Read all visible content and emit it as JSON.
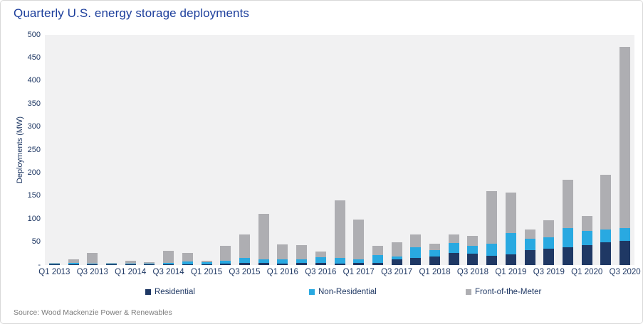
{
  "title": "Quarterly U.S. energy storage deployments",
  "source": "Source: Wood Mackenzie Power & Renewables",
  "colors": {
    "title_blue": "#1d3f9c",
    "axis_text": "#1f3864",
    "residential_navy": "#1f3864",
    "non_residential_blue": "#29a9e1",
    "front_of_meter_gray": "#aeaeb2",
    "plot_background": "#f1f1f2",
    "source_gray": "#7b7b7b"
  },
  "chart_data": {
    "type": "bar",
    "stacked": true,
    "title": "Quarterly U.S. energy storage deployments",
    "xlabel": "",
    "ylabel": "Deployments (MW)",
    "ylim": [
      0,
      500
    ],
    "ytick_step": 50,
    "ytick_labels_top_down": [
      "500",
      "450",
      "400",
      "350",
      "300",
      "250",
      "200",
      "150",
      "100",
      "50",
      "-"
    ],
    "grid": false,
    "plot_bg": "#f1f1f2",
    "legend_position": "bottom",
    "categories": [
      "Q1 2013",
      "Q2 2013",
      "Q3 2013",
      "Q4 2013",
      "Q1 2014",
      "Q2 2014",
      "Q3 2014",
      "Q4 2014",
      "Q1 2015",
      "Q2 2015",
      "Q3 2015",
      "Q4 2015",
      "Q1 2016",
      "Q2 2016",
      "Q3 2016",
      "Q4 2016",
      "Q1 2017",
      "Q2 2017",
      "Q3 2017",
      "Q4 2017",
      "Q1 2018",
      "Q2 2018",
      "Q3 2018",
      "Q4 2018",
      "Q1 2019",
      "Q2 2019",
      "Q3 2019",
      "Q4 2019",
      "Q1 2020",
      "Q2 2020",
      "Q3 2020"
    ],
    "xtick_labels": [
      "Q1 2013",
      "Q3 2013",
      "Q1 2014",
      "Q3 2014",
      "Q1 2015",
      "Q3 2015",
      "Q1 2016",
      "Q3 2016",
      "Q1 2017",
      "Q3 2017",
      "Q1 2018",
      "Q3 2018",
      "Q1 2019",
      "Q3 2019",
      "Q1 2020",
      "Q3 2020"
    ],
    "xtick_every": 2,
    "series": [
      {
        "name": "Residential",
        "color": "#1f3864",
        "values": [
          1,
          1,
          1,
          1,
          1,
          1,
          1,
          2,
          2,
          3,
          4,
          4,
          3,
          4,
          5,
          3,
          4,
          5,
          12,
          16,
          19,
          26,
          24,
          20,
          23,
          33,
          36,
          39,
          44,
          49,
          52
        ]
      },
      {
        "name": "Non-Residential",
        "color": "#29a9e1",
        "values": [
          2,
          3,
          2,
          2,
          2,
          2,
          3,
          5,
          4,
          6,
          11,
          9,
          9,
          9,
          12,
          12,
          8,
          17,
          7,
          22,
          14,
          22,
          17,
          27,
          46,
          24,
          24,
          42,
          30,
          28,
          29
        ]
      },
      {
        "name": "Front-of-the-Meter",
        "color": "#aeaeb2",
        "values": [
          2,
          9,
          24,
          1,
          6,
          4,
          27,
          19,
          3,
          33,
          51,
          98,
          33,
          30,
          12,
          125,
          87,
          19,
          30,
          29,
          13,
          19,
          23,
          114,
          88,
          20,
          37,
          104,
          32,
          119,
          393
        ]
      }
    ],
    "totals": [
      5,
      13,
      27,
      4,
      9,
      7,
      31,
      26,
      9,
      42,
      66,
      111,
      45,
      43,
      29,
      140,
      99,
      41,
      49,
      67,
      46,
      67,
      64,
      161,
      157,
      77,
      97,
      185,
      106,
      196,
      474
    ]
  }
}
